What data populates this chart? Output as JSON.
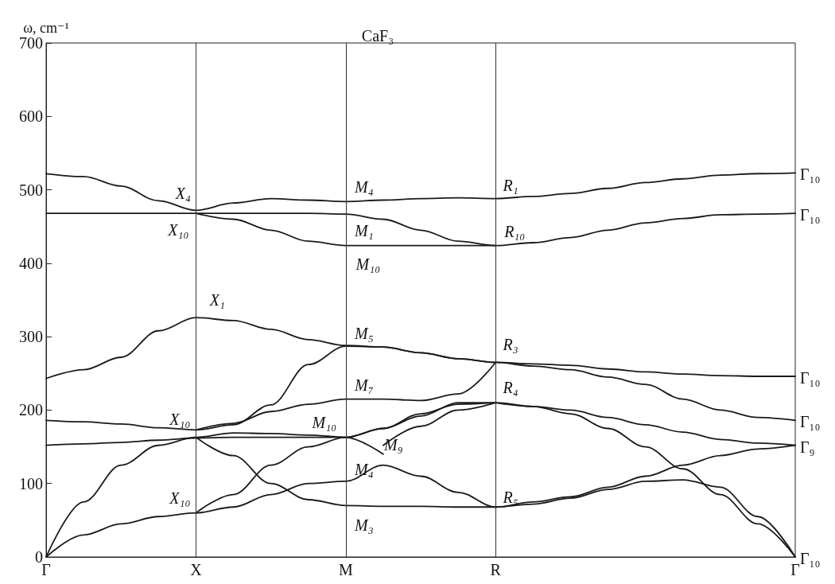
{
  "chart_data": {
    "type": "line",
    "title": "CaF₃",
    "ylabel": "ω, cm⁻¹",
    "categories": [
      "Γ",
      null,
      null,
      null,
      "X",
      null,
      null,
      null,
      "M",
      null,
      null,
      null,
      "R",
      null,
      null,
      null,
      null,
      null,
      null,
      null,
      "Γ"
    ],
    "ylim": [
      0,
      700
    ],
    "yticks": [
      0,
      100,
      200,
      300,
      400,
      500,
      600,
      700
    ],
    "grid": false,
    "marker": "none",
    "line_style": "solid",
    "series": [
      {
        "color": "#1a1a1a",
        "values": [
          522,
          518,
          505,
          485,
          472,
          482,
          488,
          486,
          484,
          486,
          488,
          489,
          488,
          491,
          495,
          502,
          510,
          515,
          520,
          522,
          523
        ]
      },
      {
        "color": "#1a1a1a",
        "values": [
          468,
          468,
          468,
          468,
          468,
          468,
          468,
          468,
          467,
          460,
          445,
          430,
          424,
          428,
          435,
          445,
          455,
          461,
          466,
          467,
          468
        ]
      },
      {
        "color": "#1a1a1a",
        "values": [
          null,
          null,
          null,
          null,
          468,
          460,
          445,
          430,
          424,
          424,
          424,
          424,
          424,
          null,
          null,
          null,
          null,
          null,
          null,
          null,
          null
        ]
      },
      {
        "color": "#1a1a1a",
        "values": [
          243,
          255,
          272,
          308,
          326,
          322,
          310,
          296,
          288,
          286,
          278,
          270,
          265,
          263,
          261,
          256,
          252,
          249,
          247,
          246,
          246
        ]
      },
      {
        "color": "#1a1a1a",
        "values": [
          186,
          184,
          181,
          176,
          173,
          180,
          207,
          262,
          287,
          286,
          278,
          270,
          265,
          260,
          255,
          245,
          235,
          215,
          200,
          190,
          186
        ]
      },
      {
        "color": "#1a1a1a",
        "values": [
          null,
          null,
          null,
          null,
          173,
          182,
          198,
          208,
          215,
          215,
          213,
          222,
          265,
          null,
          null,
          null,
          null,
          null,
          null,
          null,
          null
        ]
      },
      {
        "color": "#1a1a1a",
        "values": [
          152,
          154,
          156,
          159,
          162,
          163,
          163,
          163,
          163,
          175,
          192,
          210,
          210,
          205,
          200,
          190,
          180,
          170,
          160,
          155,
          152
        ]
      },
      {
        "color": "#1a1a1a",
        "values": [
          0,
          75,
          125,
          152,
          163,
          169,
          168,
          166,
          163,
          140,
          null,
          null,
          null,
          null,
          null,
          null,
          null,
          null,
          null,
          null,
          null
        ]
      },
      {
        "color": "#1a1a1a",
        "values": [
          null,
          null,
          null,
          null,
          163,
          138,
          100,
          78,
          70,
          69,
          69,
          68,
          68,
          72,
          80,
          92,
          103,
          105,
          95,
          55,
          0
        ]
      },
      {
        "color": "#1a1a1a",
        "values": [
          0,
          30,
          45,
          55,
          60,
          68,
          85,
          100,
          103,
          125,
          110,
          88,
          68,
          75,
          82,
          95,
          110,
          125,
          138,
          147,
          152
        ]
      },
      {
        "color": "#1a1a1a",
        "values": [
          null,
          null,
          null,
          null,
          60,
          85,
          125,
          150,
          163,
          175,
          195,
          208,
          210,
          null,
          null,
          null,
          null,
          null,
          null,
          null,
          null
        ]
      },
      {
        "color": "#1a1a1a",
        "values": [
          null,
          null,
          null,
          null,
          null,
          null,
          null,
          null,
          null,
          152,
          178,
          200,
          210,
          null,
          null,
          null,
          null,
          null,
          null,
          null,
          null
        ]
      },
      {
        "color": "#1a1a1a",
        "values": [
          null,
          null,
          null,
          null,
          null,
          null,
          null,
          null,
          null,
          null,
          null,
          null,
          210,
          205,
          195,
          175,
          150,
          120,
          85,
          45,
          0
        ]
      }
    ],
    "ref_lines": [
      {
        "axis": "x",
        "value": "X",
        "label": null
      },
      {
        "axis": "x",
        "value": "M",
        "label": null
      },
      {
        "axis": "x",
        "value": "R",
        "label": null
      }
    ],
    "annotations": [
      {
        "text": "X₄",
        "x": "X",
        "y": 472
      },
      {
        "text": "X₁₀",
        "x": "X",
        "y": 468
      },
      {
        "text": "X₁",
        "x": "X",
        "y": 326
      },
      {
        "text": "X₁₀",
        "x": "X",
        "y": 173
      },
      {
        "text": "X₁₀",
        "x": "X",
        "y": 60
      },
      {
        "text": "M₄",
        "x": "M",
        "y": 484
      },
      {
        "text": "M₁",
        "x": "M",
        "y": 467
      },
      {
        "text": "M₁₀",
        "x": "M",
        "y": 424
      },
      {
        "text": "M₅",
        "x": "M",
        "y": 288
      },
      {
        "text": "M₇",
        "x": "M",
        "y": 215
      },
      {
        "text": "M₁₀",
        "x": "M",
        "y": 163
      },
      {
        "text": "M₉",
        "x": "M",
        "y": 163
      },
      {
        "text": "M₄",
        "x": "M",
        "y": 103
      },
      {
        "text": "M₃",
        "x": "M",
        "y": 70
      },
      {
        "text": "R₁",
        "x": "R",
        "y": 488
      },
      {
        "text": "R₁₀",
        "x": "R",
        "y": 424
      },
      {
        "text": "R₃",
        "x": "R",
        "y": 265
      },
      {
        "text": "R₄",
        "x": "R",
        "y": 210
      },
      {
        "text": "R₅",
        "x": "R",
        "y": 68
      },
      "Γ₁₀",
      "Γ₁₀",
      "Γ₁₀",
      "Γ₁₀",
      "Γ₉",
      "Γ₁₀"
    ]
  }
}
